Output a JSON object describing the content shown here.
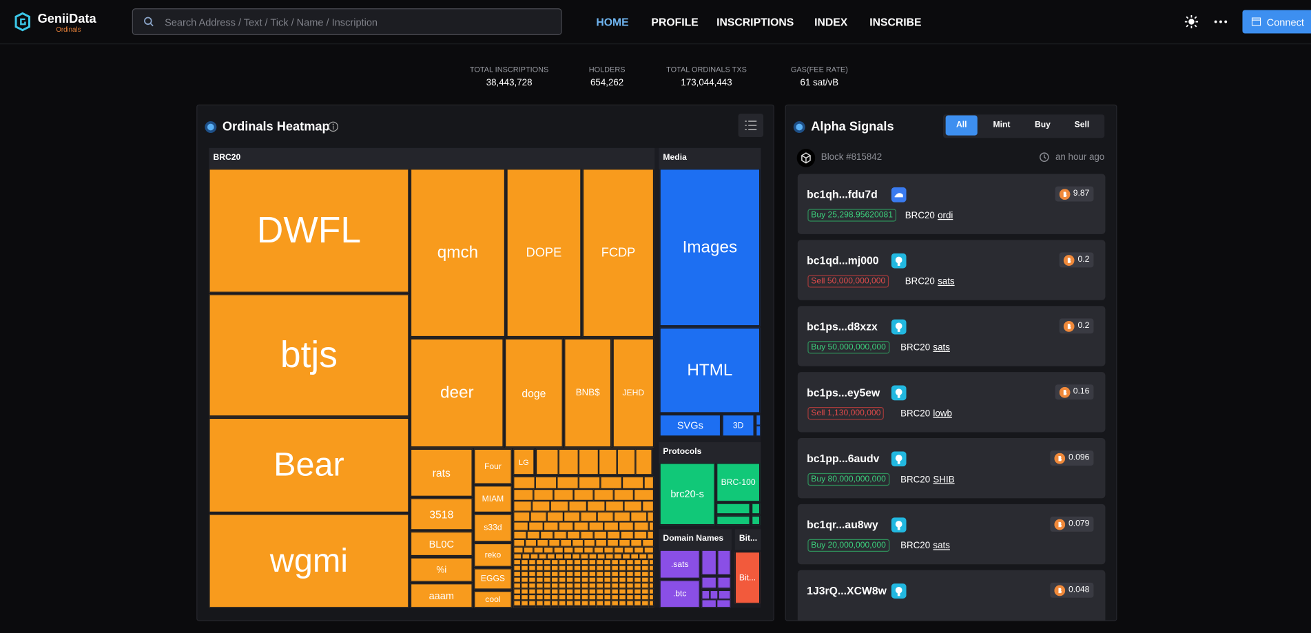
{
  "header": {
    "logo": "GeniiData",
    "logo_sub": "Ordinals",
    "search_placeholder": "Search Address / Text / Tick / Name / Inscription",
    "nav": [
      "HOME",
      "PROFILE",
      "INSCRIPTIONS",
      "INDEX",
      "INSCRIBE"
    ],
    "connect": "Connect"
  },
  "stats": [
    {
      "label": "TOTAL INSCRIPTIONS",
      "value": "38,443,728"
    },
    {
      "label": "HOLDERS",
      "value": "654,262"
    },
    {
      "label": "TOTAL ORDINALS TXS",
      "value": "173,044,443"
    },
    {
      "label": "GAS(FEE RATE)",
      "value": "61 sat/vB"
    }
  ],
  "heatmap": {
    "title": "Ordinals Heatmap",
    "groups": [
      {
        "name": "BRC20",
        "cells": [
          "DWFL",
          "btjs",
          "Bear",
          "wgmi",
          "qmch",
          "DOPE",
          "FCDP",
          "deer",
          "doge",
          "BNB$",
          "JEHD",
          "rats",
          "3518",
          "BL0C",
          "%i",
          "aaam",
          "Four",
          "MIAM",
          "s33d",
          "reko",
          "EGGS",
          "cool",
          "LG"
        ]
      },
      {
        "name": "Media",
        "cells": [
          "Images",
          "HTML",
          "SVGs",
          "3D"
        ]
      },
      {
        "name": "Protocols",
        "cells": [
          "brc20-s",
          "BRC-100"
        ]
      },
      {
        "name": "Domain Names",
        "cells": [
          ".sats",
          ".btc"
        ]
      },
      {
        "name": "Bit...",
        "cells": [
          "Bit..."
        ]
      }
    ]
  },
  "alpha": {
    "title": "Alpha Signals",
    "tabs": [
      "All",
      "Mint",
      "Buy",
      "Sell"
    ],
    "block": "Block #815842",
    "time": "an hour ago",
    "signals": [
      {
        "address": "bc1qh...fdu7d",
        "value": "9.87",
        "trade": "Buy 25,298.95620081",
        "protocol": "BRC20",
        "ticker": "ordi"
      },
      {
        "address": "bc1qd...mj000",
        "value": "0.2",
        "trade": "Sell 50,000,000,000",
        "protocol": "BRC20",
        "ticker": "sats"
      },
      {
        "address": "bc1ps...d8xzx",
        "value": "0.2",
        "trade": "Buy 50,000,000,000",
        "protocol": "BRC20",
        "ticker": "sats"
      },
      {
        "address": "bc1ps...ey5ew",
        "value": "0.16",
        "trade": "Sell 1,130,000,000",
        "protocol": "BRC20",
        "ticker": "lowb"
      },
      {
        "address": "bc1pp...6audv",
        "value": "0.096",
        "trade": "Buy 80,000,000,000",
        "protocol": "BRC20",
        "ticker": "SHIB"
      },
      {
        "address": "bc1qr...au8wy",
        "value": "0.079",
        "trade": "Buy 20,000,000,000",
        "protocol": "BRC20",
        "ticker": "sats"
      },
      {
        "address": "1J3rQ...XCW8w",
        "value": "0.048"
      }
    ]
  }
}
